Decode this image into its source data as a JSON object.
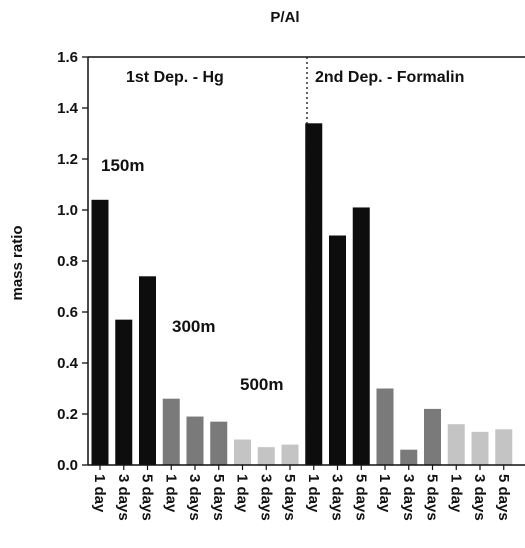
{
  "chart_data": {
    "type": "bar",
    "title": "P/Al",
    "ylabel": "mass ratio",
    "xlabel": "",
    "ylim": [
      0,
      1.6
    ],
    "yticks": [
      "0.0",
      "0.2",
      "0.4",
      "0.6",
      "0.8",
      "1.0",
      "1.2",
      "1.4",
      "1.6"
    ],
    "grid": false,
    "sections": [
      {
        "label": "1st Dep. - Hg"
      },
      {
        "label": "2nd Dep. - Formalin"
      }
    ],
    "annotations": [
      {
        "text": "150m"
      },
      {
        "text": "300m"
      },
      {
        "text": "500m"
      }
    ],
    "depth_colors": {
      "150m": "#0d0d0d",
      "300m": "#7a7a7a",
      "500m": "#c4c4c4"
    },
    "bars": [
      {
        "label": "1 day",
        "value": 1.04,
        "depth": "150m"
      },
      {
        "label": "3 days",
        "value": 0.57,
        "depth": "150m"
      },
      {
        "label": "5 days",
        "value": 0.74,
        "depth": "150m"
      },
      {
        "label": "1 day",
        "value": 0.26,
        "depth": "300m"
      },
      {
        "label": "3 days",
        "value": 0.19,
        "depth": "300m"
      },
      {
        "label": "5 days",
        "value": 0.17,
        "depth": "300m"
      },
      {
        "label": "1 day",
        "value": 0.1,
        "depth": "500m"
      },
      {
        "label": "3 days",
        "value": 0.07,
        "depth": "500m"
      },
      {
        "label": "5 days",
        "value": 0.08,
        "depth": "500m"
      },
      {
        "label": "1 day",
        "value": 1.34,
        "depth": "150m"
      },
      {
        "label": "3 days",
        "value": 0.9,
        "depth": "150m"
      },
      {
        "label": "5 days",
        "value": 1.01,
        "depth": "150m"
      },
      {
        "label": "1 day",
        "value": 0.3,
        "depth": "300m"
      },
      {
        "label": "3 days",
        "value": 0.06,
        "depth": "300m"
      },
      {
        "label": "5 days",
        "value": 0.22,
        "depth": "300m"
      },
      {
        "label": "1 day",
        "value": 0.16,
        "depth": "500m"
      },
      {
        "label": "3 days",
        "value": 0.13,
        "depth": "500m"
      },
      {
        "label": "5 days",
        "value": 0.14,
        "depth": "500m"
      }
    ]
  }
}
